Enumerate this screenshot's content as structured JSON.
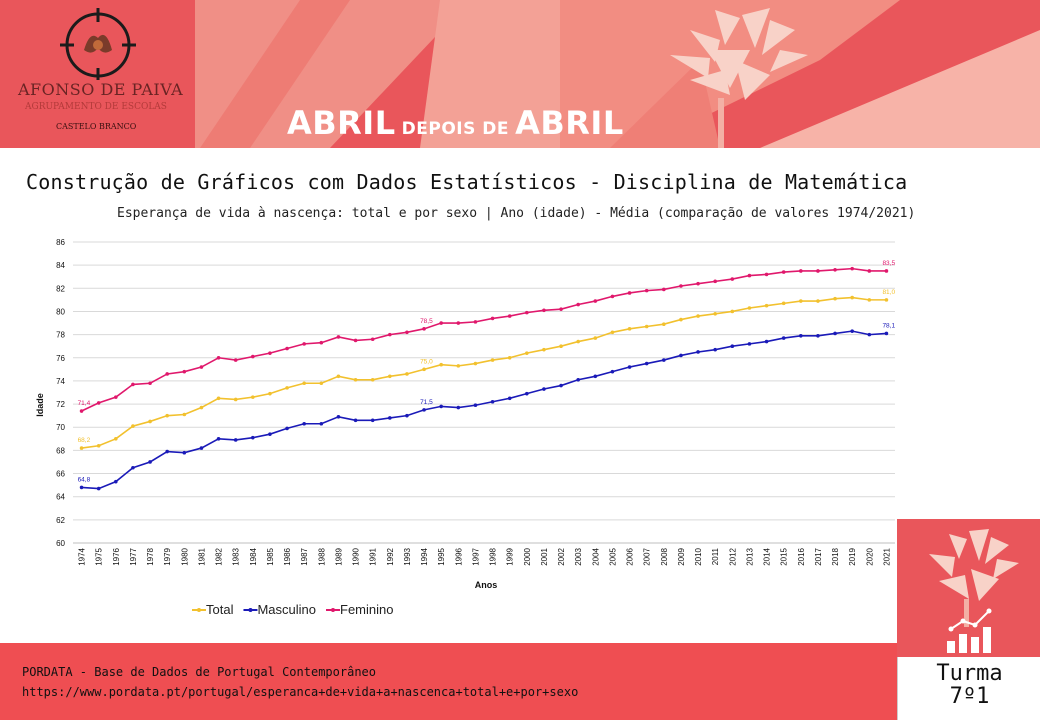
{
  "header": {
    "school_name": "AFONSO DE PAIVA",
    "school_subtitle": "AGRUPAMENTO DE ESCOLAS",
    "school_city": "CASTELO BRANCO",
    "banner_word1": "ABRIL",
    "banner_word2": "DEPOIS DE",
    "banner_word3": "ABRIL"
  },
  "page_title": "Construção de Gráficos com Dados Estatísticos - Disciplina de Matemática",
  "footer": {
    "source": "PORDATA - Base de Dados de Portugal Contemporâneo",
    "url": "https://www.pordata.pt/portugal/esperanca+de+vida+a+nascenca+total+e+por+sexo"
  },
  "badge": {
    "label": "Turma",
    "class": "7º1"
  },
  "colors": {
    "banner": "#e9565b",
    "total": "#f2c12e",
    "masculino": "#1a1ab8",
    "feminino": "#e0186c"
  },
  "chart_data": {
    "type": "line",
    "title": "Esperança de vida à nascença: total e por sexo | Ano (idade) - Média (comparação de valores 1974/2021)",
    "xlabel": "Anos",
    "ylabel": "Idade",
    "ylim": [
      60,
      86
    ],
    "yticks": [
      60,
      62,
      64,
      66,
      68,
      70,
      72,
      74,
      76,
      78,
      80,
      82,
      84,
      86
    ],
    "grid": true,
    "legend_position": "bottom-left",
    "categories": [
      "1974",
      "1975",
      "1976",
      "1977",
      "1978",
      "1979",
      "1980",
      "1981",
      "1982",
      "1983",
      "1984",
      "1985",
      "1986",
      "1987",
      "1988",
      "1989",
      "1990",
      "1991",
      "1992",
      "1993",
      "1994",
      "1995",
      "1996",
      "1997",
      "1998",
      "1999",
      "2000",
      "2001",
      "2002",
      "2003",
      "2004",
      "2005",
      "2006",
      "2007",
      "2008",
      "2009",
      "2010",
      "2011",
      "2012",
      "2013",
      "2014",
      "2015",
      "2016",
      "2017",
      "2018",
      "2019",
      "2020",
      "2021"
    ],
    "series": [
      {
        "name": "Total",
        "color": "#f2c12e",
        "values": [
          68.2,
          68.4,
          69.0,
          70.1,
          70.5,
          71.0,
          71.1,
          71.7,
          72.5,
          72.4,
          72.6,
          72.9,
          73.4,
          73.8,
          73.8,
          74.4,
          74.1,
          74.1,
          74.4,
          74.6,
          75.0,
          75.4,
          75.3,
          75.5,
          75.8,
          76.0,
          76.4,
          76.7,
          77.0,
          77.4,
          77.7,
          78.2,
          78.5,
          78.7,
          78.9,
          79.3,
          79.6,
          79.8,
          80.0,
          80.3,
          80.5,
          80.7,
          80.9,
          80.9,
          81.1,
          81.2,
          81.0,
          81.0
        ],
        "labels": {
          "1974": "68,2",
          "1994": "75,0",
          "2021": "81,0"
        }
      },
      {
        "name": "Masculino",
        "color": "#1a1ab8",
        "values": [
          64.8,
          64.7,
          65.3,
          66.5,
          67.0,
          67.9,
          67.8,
          68.2,
          69.0,
          68.9,
          69.1,
          69.4,
          69.9,
          70.3,
          70.3,
          70.9,
          70.6,
          70.6,
          70.8,
          71.0,
          71.5,
          71.8,
          71.7,
          71.9,
          72.2,
          72.5,
          72.9,
          73.3,
          73.6,
          74.1,
          74.4,
          74.8,
          75.2,
          75.5,
          75.8,
          76.2,
          76.5,
          76.7,
          77.0,
          77.2,
          77.4,
          77.7,
          77.9,
          77.9,
          78.1,
          78.3,
          78.0,
          78.1
        ],
        "labels": {
          "1974": "64,8",
          "1994": "71,5",
          "2021": "78,1"
        }
      },
      {
        "name": "Feminino",
        "color": "#e0186c",
        "values": [
          71.4,
          72.1,
          72.6,
          73.7,
          73.8,
          74.6,
          74.8,
          75.2,
          76.0,
          75.8,
          76.1,
          76.4,
          76.8,
          77.2,
          77.3,
          77.8,
          77.5,
          77.6,
          78.0,
          78.2,
          78.5,
          79.0,
          79.0,
          79.1,
          79.4,
          79.6,
          79.9,
          80.1,
          80.2,
          80.6,
          80.9,
          81.3,
          81.6,
          81.8,
          81.9,
          82.2,
          82.4,
          82.6,
          82.8,
          83.1,
          83.2,
          83.4,
          83.5,
          83.5,
          83.6,
          83.7,
          83.5,
          83.5
        ],
        "labels": {
          "1974": "71,4",
          "1994": "78,5",
          "2021": "83,5"
        }
      }
    ]
  }
}
